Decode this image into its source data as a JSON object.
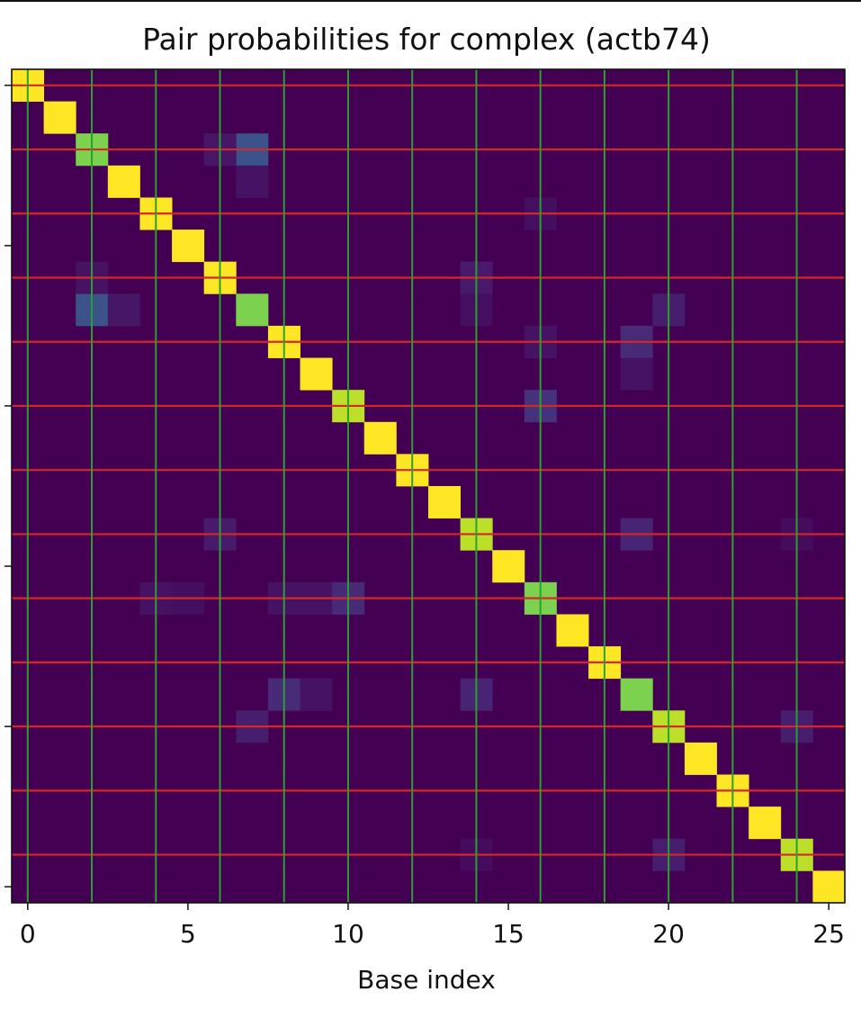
{
  "chart_data": {
    "type": "heatmap",
    "title": "Pair probabilities for complex (actb74)",
    "xlabel": "Base index",
    "ylabel": "",
    "size": 26,
    "xlim": [
      -0.5,
      25.5
    ],
    "ylim": [
      25.5,
      -0.5
    ],
    "x_ticks": [
      0,
      5,
      10,
      15,
      20,
      25
    ],
    "y_ticks": [
      0,
      5,
      10,
      15,
      20,
      25
    ],
    "y_tick_labels_visible": false,
    "colormap": "viridis",
    "value_range": [
      0,
      1
    ],
    "diagonal": [
      1.0,
      1.0,
      0.8,
      1.0,
      1.0,
      1.0,
      1.0,
      0.8,
      1.0,
      1.0,
      0.9,
      1.0,
      1.0,
      1.0,
      0.9,
      1.0,
      0.8,
      1.0,
      1.0,
      0.8,
      0.9,
      1.0,
      1.0,
      1.0,
      0.9,
      1.0
    ],
    "off_diagonal": [
      {
        "row": 2,
        "col": 7,
        "value": 0.25
      },
      {
        "row": 2,
        "col": 6,
        "value": 0.06
      },
      {
        "row": 3,
        "col": 7,
        "value": 0.05
      },
      {
        "row": 7,
        "col": 2,
        "value": 0.25
      },
      {
        "row": 7,
        "col": 3,
        "value": 0.06
      },
      {
        "row": 6,
        "col": 2,
        "value": 0.05
      },
      {
        "row": 6,
        "col": 14,
        "value": 0.07
      },
      {
        "row": 7,
        "col": 14,
        "value": 0.04
      },
      {
        "row": 7,
        "col": 20,
        "value": 0.08
      },
      {
        "row": 8,
        "col": 19,
        "value": 0.12
      },
      {
        "row": 9,
        "col": 19,
        "value": 0.05
      },
      {
        "row": 4,
        "col": 16,
        "value": 0.04
      },
      {
        "row": 8,
        "col": 16,
        "value": 0.05
      },
      {
        "row": 10,
        "col": 16,
        "value": 0.14
      },
      {
        "row": 14,
        "col": 6,
        "value": 0.07
      },
      {
        "row": 14,
        "col": 19,
        "value": 0.1
      },
      {
        "row": 14,
        "col": 24,
        "value": 0.03
      },
      {
        "row": 16,
        "col": 4,
        "value": 0.05
      },
      {
        "row": 16,
        "col": 5,
        "value": 0.04
      },
      {
        "row": 16,
        "col": 8,
        "value": 0.05
      },
      {
        "row": 16,
        "col": 9,
        "value": 0.05
      },
      {
        "row": 16,
        "col": 10,
        "value": 0.12
      },
      {
        "row": 19,
        "col": 8,
        "value": 0.12
      },
      {
        "row": 19,
        "col": 9,
        "value": 0.05
      },
      {
        "row": 19,
        "col": 14,
        "value": 0.1
      },
      {
        "row": 20,
        "col": 7,
        "value": 0.08
      },
      {
        "row": 20,
        "col": 24,
        "value": 0.08
      },
      {
        "row": 24,
        "col": 14,
        "value": 0.03
      },
      {
        "row": 24,
        "col": 20,
        "value": 0.08
      }
    ],
    "vertical_guides_at": [
      0,
      2,
      4,
      6,
      8,
      10,
      12,
      14,
      16,
      18,
      20,
      22,
      24
    ],
    "horizontal_guides_at": [
      0,
      2,
      4,
      6,
      8,
      10,
      12,
      14,
      16,
      18,
      20,
      22,
      24
    ],
    "colors": {
      "background": "#440154",
      "vertical_guides": "#2ca02c",
      "horizontal_guides": "#d62728"
    }
  }
}
